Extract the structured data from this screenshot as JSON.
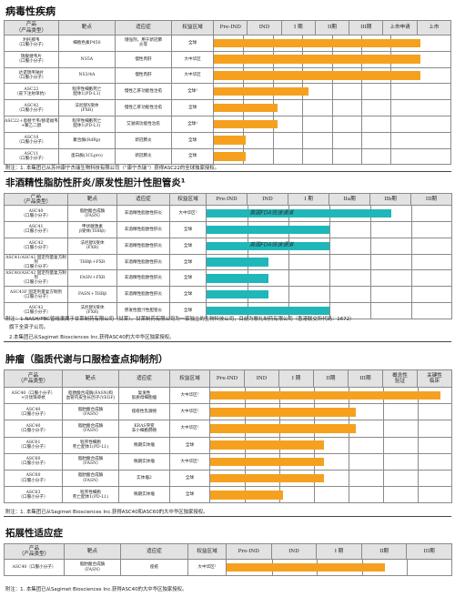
{
  "colors": {
    "orange": "#f5a11f",
    "teal": "#1fb7b9",
    "header_bg": "#e2e2e2"
  },
  "s1": {
    "title": "病毒性疾病",
    "headers": [
      "产品\n（产品类型）",
      "靶点",
      "适应症",
      "权益区域",
      "Pre-IND",
      "IND",
      "I 期",
      "II期",
      "III期",
      "上市申请",
      "上市"
    ],
    "rows": [
      {
        "product": "利托那韦\n（口服小分子）",
        "target": "细胞色素P450",
        "ind": "增强剂，用于新冠肺\n炎等",
        "region": "全球",
        "progress": 1.0,
        "color": "orange"
      },
      {
        "product": "瑞舰捷韦片\n（口服小分子）",
        "target": "NS5A",
        "ind": "慢性丙肝",
        "region": "大中华区",
        "progress": 1.0,
        "color": "orange"
      },
      {
        "product": "达诺瑞韦钠片\n（口服小分子）",
        "target": "NS3/4A",
        "ind": "慢性丙肝",
        "region": "大中华区",
        "progress": 1.0,
        "color": "orange"
      },
      {
        "product": "ASC22\n（皮下注射单抗）",
        "target": "程序性细胞死亡\n配体1(PD-L1)",
        "ind": "慢性乙肝功能性治愈",
        "region": "全球¹",
        "progress": 0.46,
        "color": "orange"
      },
      {
        "product": "ASC42\n（口服小分子）",
        "target": "法尼醇X受体\n(FXR)",
        "ind": "慢性乙肝功能性治愈",
        "region": "全球",
        "progress": 0.31,
        "color": "orange"
      },
      {
        "product": "ASC22＋恩替卡韦/替诺福韦\n+聚乙二醇",
        "target": "程序性细胞死亡\n配体1(PD-L1)",
        "ind": "艾滋病功能性治愈",
        "region": "全球¹",
        "progress": 0.31,
        "color": "orange"
      },
      {
        "product": "ASC10\n（口服小分子）",
        "target": "聚合酶(RdRp)",
        "ind": "新冠肺炎",
        "region": "全球",
        "progress": 0.155,
        "color": "orange"
      },
      {
        "product": "ASC11\n（口服小分子）",
        "target": "蛋白酶(3CLpro)",
        "ind": "新冠肺炎",
        "region": "全球",
        "progress": 0.155,
        "color": "orange"
      }
    ],
    "note": "附注：1. 本集团已从苏州康宁杰瑞生物科技有限公司（“康宁杰瑞”）获得ASC22的全球独家授权。"
  },
  "s2": {
    "title": "非酒精性脂肪性肝炎/原发性胆汁性胆管炎¹",
    "headers": [
      "产品\n（产品类型）",
      "靶点",
      "适应症",
      "权益区域",
      "Pre-IND",
      "IND",
      "I 期",
      "IIa期",
      "IIb期",
      "III期"
    ],
    "rows": [
      {
        "product": "ASC40\n（口服小分子）",
        "target": "脂肪酸合成酶\n（FASN）",
        "ind": "非酒精性脂肪性肝炎",
        "region": "大中华区²",
        "progress": 0.75,
        "color": "teal",
        "label": "美国FDA快速通道"
      },
      {
        "product": "ASC41\n（口服小分子）",
        "target": "甲状腺激素\nβ受体(THRβ)",
        "ind": "非酒精性脂肪性肝炎",
        "region": "全球",
        "progress": 0.5,
        "color": "teal",
        "label": ""
      },
      {
        "product": "ASC42\n（口服小分子）",
        "target": "法尼醇X受体\n(FXR)",
        "ind": "非酒精性脂肪性肝炎",
        "region": "全球",
        "progress": 0.5,
        "color": "teal",
        "label": "美国FDA快速通道"
      },
      {
        "product": "ASC41/ASC42 固定剂量复方制剂\n（口服小分子）",
        "target": "THRβ＋FXR",
        "ind": "非酒精性脂肪性肝炎",
        "region": "全球",
        "progress": 0.25,
        "color": "teal",
        "label": ""
      },
      {
        "product": "ASC40/ASC42 固定剂量复方制剂\n（口服小分子）",
        "target": "FASN＋FXR",
        "ind": "非酒精性脂肪性肝炎",
        "region": "全球",
        "progress": 0.25,
        "color": "teal",
        "label": ""
      },
      {
        "product": "ASC43F 固定剂量复方制剂\n（口服小分子）",
        "target": "FASN＋THRβ",
        "ind": "非酒精性脂肪性肝炎",
        "region": "全球",
        "progress": 0.25,
        "color": "teal",
        "label": ""
      },
      {
        "product": "ASC42\n（口服小分子）",
        "target": "法尼醇X受体\n(FXR)",
        "ind": "原发性胆汁性胆管炎",
        "region": "全球",
        "progress": 0.5,
        "color": "teal",
        "label": ""
      }
    ],
    "note1": "附注：1.NASH/PBC管线隶属于甘莱制药有限公司（甘莱）。甘莱制药有限公司为一家独立的生物科技公司，目前为歌礼制药有限公司（香港联交所代码：1672）",
    "note1b": "旗下全资子公司。",
    "note2": "2.本集团已从Sagimet Biosciences Inc.获得ASC40的大中华区独家授权。"
  },
  "s3": {
    "title": "肿瘤（脂质代谢与口服检查点抑制剂）",
    "headers": [
      "产品\n（产品类型）",
      "靶点",
      "适应症",
      "权益区域",
      "Pre-IND",
      "IND",
      "I 期",
      "II期",
      "III期",
      "概念性\n验证",
      "关键性\n临床"
    ],
    "rows": [
      {
        "product": "ASC40（口服小分子）\n+贝伐珠单抗",
        "target": "脂肪酸合成酶(FASN)和\n血管内皮生长因子(VEGF)",
        "ind": "复发性\n胶质母细胞瘤",
        "region": "大中华区¹",
        "progress": 0.95,
        "color": "orange"
      },
      {
        "product": "ASC40\n（口服小分子）",
        "target": "脂肪酸合成酶\n（FASN）",
        "ind": "痤疮性乳腺癌",
        "region": "大中华区¹",
        "progress": 0.6,
        "color": "orange"
      },
      {
        "product": "ASC40\n（口服小分子）",
        "target": "脂肪酸合成酶\n（FASN）",
        "ind": "KRAS突变\n非小细胞肺癌",
        "region": "大中华区¹",
        "progress": 0.6,
        "color": "orange"
      },
      {
        "product": "ASC61\n（口服小分子）",
        "target": "程序性细胞\n死亡配体1(PD-L1)",
        "ind": "晚期实体瘤",
        "region": "全球",
        "progress": 0.47,
        "color": "orange"
      },
      {
        "product": "ASC60\n（口服小分子）",
        "target": "脂肪酸合成酶\n（FASN）",
        "ind": "晚期实体瘤",
        "region": "大中华区¹",
        "progress": 0.47,
        "color": "orange"
      },
      {
        "product": "ASC60\n（口服小分子）",
        "target": "脂肪酸合成酶\n（FASN）",
        "ind": "实体瘤2",
        "region": "全球",
        "progress": 0.47,
        "color": "orange"
      },
      {
        "product": "ASC63\n（口服小分子）",
        "target": "程序性细胞\n死亡配体1(PD-L1)",
        "ind": "晚期实体瘤",
        "region": "全球",
        "progress": 0.3,
        "color": "orange"
      }
    ],
    "note": "附注：1. 本集团已从Sagimet Biosciences Inc.获得ASC40和ASC60的大中华区独家授权。"
  },
  "s4": {
    "title": "拓展性适应症",
    "headers": [
      "产品\n（产品类型）",
      "靶点",
      "适应症",
      "权益区域",
      "Pre-IND",
      "IND",
      "I 期",
      "II期",
      "III期"
    ],
    "rows": [
      {
        "product": "ASC40（口服小分子）",
        "target": "脂肪酸合成酶\n（FASN）",
        "ind": "痤疮",
        "region": "大中华区¹",
        "progress": 0.7,
        "color": "orange"
      }
    ],
    "note": "附注：1. 本集团已从Sagimet Biosciences Inc.获得ASC40的大中华区独家授权。"
  }
}
